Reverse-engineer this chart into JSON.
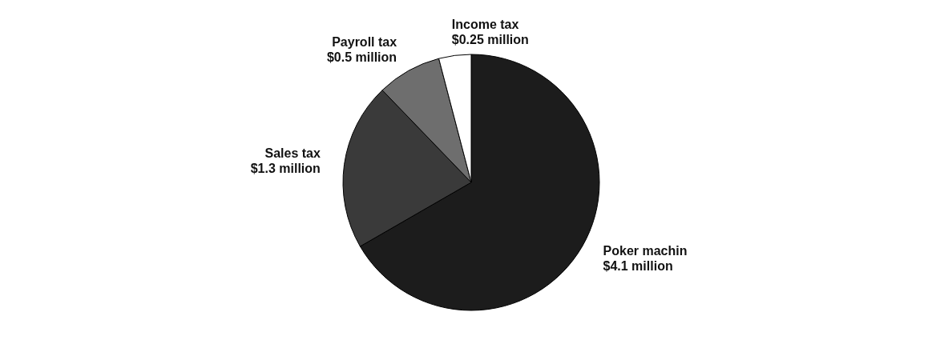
{
  "chart_data": {
    "type": "pie",
    "categories": [
      "Poker machin",
      "Sales tax",
      "Payroll tax",
      "Income tax"
    ],
    "values": [
      4.1,
      1.3,
      0.5,
      0.25
    ],
    "value_labels": [
      "$4.1 million",
      "$1.3 million",
      "$0.5 million",
      "$0.25 million"
    ],
    "colors": [
      "#1c1c1c",
      "#3a3a3a",
      "#6e6e6e",
      "#ffffff"
    ],
    "legend": false
  }
}
